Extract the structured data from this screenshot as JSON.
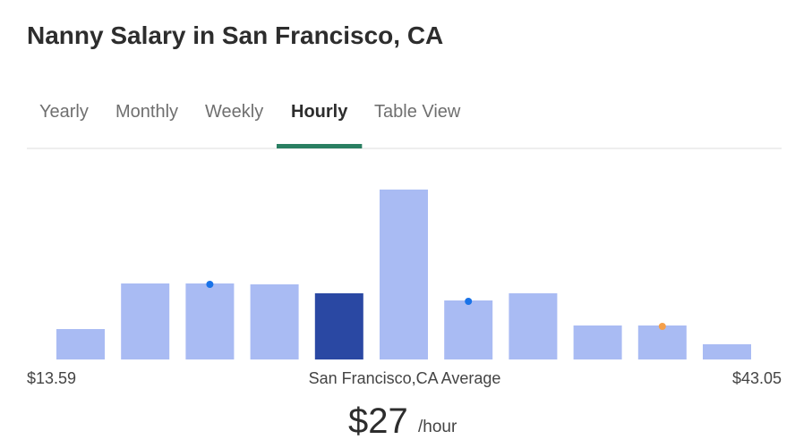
{
  "header": {
    "title": "Nanny Salary in San Francisco, CA"
  },
  "tabs": {
    "items": [
      "Yearly",
      "Monthly",
      "Weekly",
      "Hourly",
      "Table View"
    ],
    "active": 3
  },
  "chart_data": {
    "type": "bar",
    "values": [
      34,
      85,
      85,
      84,
      74,
      190,
      66,
      74,
      38,
      38,
      17
    ],
    "ylim": [
      0,
      190
    ],
    "color": "#a9bbf3",
    "highlight_color": "#2a48a3",
    "highlight_index": 4,
    "dots": [
      {
        "index": 2,
        "color": "#1a73e8"
      },
      {
        "index": 6,
        "color": "#1a73e8"
      },
      {
        "index": 9,
        "color": "#f5a04a"
      }
    ],
    "min_label": "$13.59",
    "max_label": "$43.05",
    "center_label": "San Francisco,CA Average"
  },
  "summary": {
    "value": "$27",
    "unit": "/hour"
  }
}
